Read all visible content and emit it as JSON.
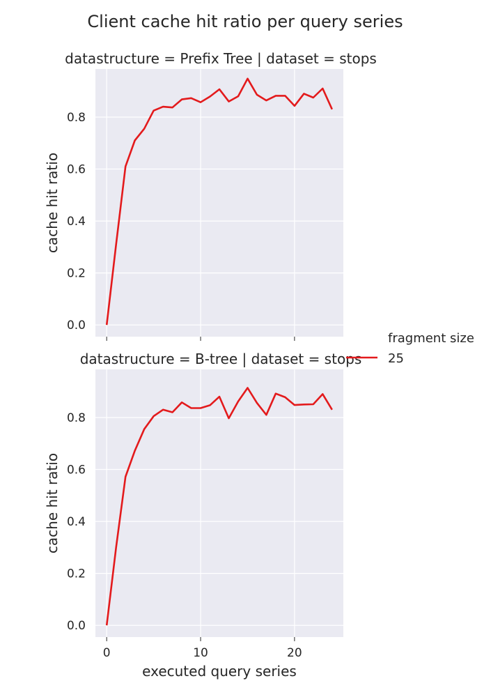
{
  "figure": {
    "suptitle": "Client cache hit ratio per query series"
  },
  "legend": {
    "title": "fragment size",
    "entries": [
      {
        "label": "25",
        "color": "#E31A1C"
      }
    ]
  },
  "chart_data": [
    {
      "type": "line",
      "title": "datastructure = Prefix Tree | dataset = stops",
      "xlabel": "",
      "ylabel": "cache hit ratio",
      "xlim": [
        -1.2,
        25.2
      ],
      "ylim": [
        -0.045,
        0.985
      ],
      "xticks": [
        0,
        10,
        20
      ],
      "xticklabels": [
        "",
        "",
        ""
      ],
      "yticks": [
        0.0,
        0.2,
        0.4,
        0.6,
        0.8
      ],
      "yticklabels": [
        "0.0",
        "0.2",
        "0.4",
        "0.6",
        "0.8"
      ],
      "grid": true,
      "series": [
        {
          "name": "25",
          "color": "#E31A1C",
          "x": [
            0,
            1,
            2,
            3,
            4,
            5,
            6,
            7,
            8,
            9,
            10,
            11,
            12,
            13,
            14,
            15,
            16,
            17,
            18,
            19,
            20,
            21,
            22,
            23,
            24
          ],
          "y": [
            0.0,
            0.31,
            0.61,
            0.71,
            0.755,
            0.825,
            0.84,
            0.837,
            0.868,
            0.873,
            0.857,
            0.879,
            0.907,
            0.86,
            0.88,
            0.948,
            0.886,
            0.864,
            0.882,
            0.882,
            0.843,
            0.89,
            0.875,
            0.91,
            0.83
          ]
        }
      ]
    },
    {
      "type": "line",
      "title": "datastructure = B-tree | dataset = stops",
      "xlabel": "executed query series",
      "ylabel": "cache hit ratio",
      "xlim": [
        -1.2,
        25.2
      ],
      "ylim": [
        -0.045,
        0.985
      ],
      "xticks": [
        0,
        10,
        20
      ],
      "xticklabels": [
        "0",
        "10",
        "20"
      ],
      "yticks": [
        0.0,
        0.2,
        0.4,
        0.6,
        0.8
      ],
      "yticklabels": [
        "0.0",
        "0.2",
        "0.4",
        "0.6",
        "0.8"
      ],
      "grid": true,
      "series": [
        {
          "name": "25",
          "color": "#E31A1C",
          "x": [
            0,
            1,
            2,
            3,
            4,
            5,
            6,
            7,
            8,
            9,
            10,
            11,
            12,
            13,
            14,
            15,
            16,
            17,
            18,
            19,
            20,
            21,
            22,
            23,
            24
          ],
          "y": [
            0.0,
            0.3,
            0.572,
            0.672,
            0.755,
            0.805,
            0.83,
            0.82,
            0.858,
            0.836,
            0.836,
            0.847,
            0.88,
            0.797,
            0.862,
            0.914,
            0.856,
            0.81,
            0.892,
            0.878,
            0.848,
            0.85,
            0.851,
            0.89,
            0.83
          ]
        }
      ]
    }
  ]
}
